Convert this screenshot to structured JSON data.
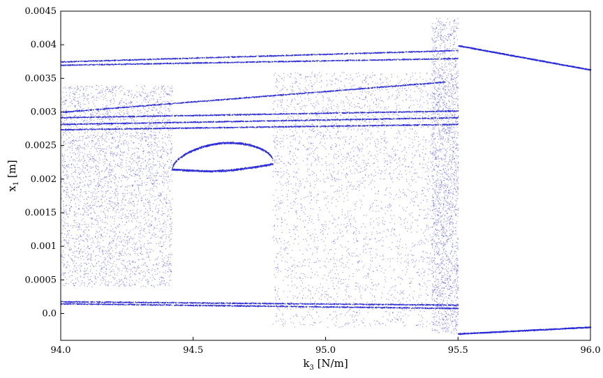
{
  "chart_data": {
    "type": "scatter",
    "title": "",
    "xlabel": "k3 [N/m]",
    "xlabel_main": "k",
    "xlabel_sub": "3",
    "xlabel_unit": " [N/m]",
    "ylabel": "x1 [m]",
    "ylabel_main": "x",
    "ylabel_sub": "1",
    "ylabel_unit": " [m]",
    "xlim": [
      94.0,
      96.0
    ],
    "ylim": [
      -0.0004,
      0.0045
    ],
    "xticks": [
      94.0,
      94.5,
      95.0,
      95.5,
      96.0
    ],
    "xtick_labels": [
      "94.0",
      "94.5",
      "95.0",
      "95.5",
      "96.0"
    ],
    "yticks": [
      0.0,
      0.0005,
      0.001,
      0.0015,
      0.002,
      0.0025,
      0.003,
      0.0035,
      0.004,
      0.0045
    ],
    "ytick_labels": [
      "0.0",
      "0.0005",
      "0.001",
      "0.0015",
      "0.002",
      "0.0025",
      "0.003",
      "0.0035",
      "0.004",
      "0.0045"
    ],
    "grid": false,
    "marker_color": "#2b2bd9",
    "branches": [
      {
        "x": [
          94.0,
          95.5
        ],
        "y": [
          0.00375,
          0.00392
        ]
      },
      {
        "x": [
          94.0,
          95.5
        ],
        "y": [
          0.0037,
          0.0038
        ]
      },
      {
        "x": [
          94.0,
          95.45
        ],
        "y": [
          0.003,
          0.00345
        ]
      },
      {
        "x": [
          94.0,
          95.5
        ],
        "y": [
          0.00292,
          0.00302
        ]
      },
      {
        "x": [
          94.0,
          95.5
        ],
        "y": [
          0.00282,
          0.00292
        ]
      },
      {
        "x": [
          94.0,
          95.5
        ],
        "y": [
          0.00274,
          0.00282
        ]
      },
      {
        "x": [
          94.0,
          95.5
        ],
        "y": [
          0.00018,
          0.00013
        ]
      },
      {
        "x": [
          94.0,
          95.5
        ],
        "y": [
          0.00015,
          8e-05
        ]
      },
      {
        "x": [
          95.5,
          96.0
        ],
        "y": [
          0.00399,
          0.00363
        ]
      },
      {
        "x": [
          95.5,
          96.0
        ],
        "y": [
          -0.0003,
          -0.0002
        ]
      }
    ],
    "bubble": {
      "x_start": 94.42,
      "x_end": 94.8,
      "y_upper": 0.00248,
      "y_lower": 0.00215,
      "y_center": 0.00215
    },
    "chaotic_regions": [
      {
        "x": [
          94.0,
          94.42
        ],
        "y": [
          0.002,
          0.0034
        ]
      },
      {
        "x": [
          94.0,
          94.42
        ],
        "y": [
          0.0004,
          0.002
        ]
      },
      {
        "x": [
          94.8,
          95.5
        ],
        "y": [
          0.002,
          0.0036
        ]
      },
      {
        "x": [
          94.8,
          95.5
        ],
        "y": [
          -0.0002,
          0.002
        ]
      },
      {
        "x": [
          95.4,
          95.5
        ],
        "y": [
          -0.0003,
          0.0044
        ]
      }
    ]
  }
}
